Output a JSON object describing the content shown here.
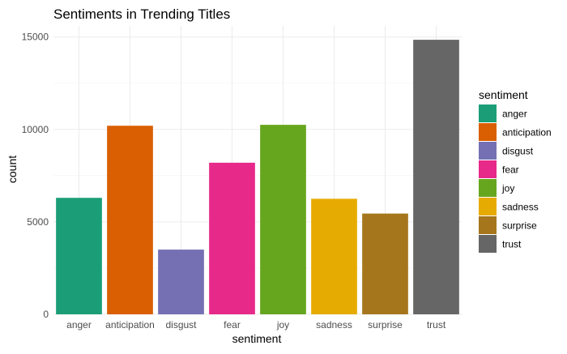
{
  "chart_data": {
    "type": "bar",
    "title": "Sentiments in Trending Titles",
    "xlabel": "sentiment",
    "ylabel": "count",
    "ylim": [
      0,
      15600
    ],
    "yticks": [
      0,
      5000,
      10000,
      15000
    ],
    "ytick_labels": [
      "0",
      "5000",
      "10000",
      "15000"
    ],
    "grid": true,
    "legend_position": "right",
    "categories": [
      "anger",
      "anticipation",
      "disgust",
      "fear",
      "joy",
      "sadness",
      "surprise",
      "trust"
    ],
    "values": [
      6300,
      10200,
      3500,
      8200,
      10250,
      6250,
      5450,
      14850
    ],
    "colors": [
      "#1b9e77",
      "#d95f02",
      "#7570b3",
      "#e7298a",
      "#66a61e",
      "#e6ab02",
      "#a6761d",
      "#666666"
    ],
    "legend_title": "sentiment"
  }
}
